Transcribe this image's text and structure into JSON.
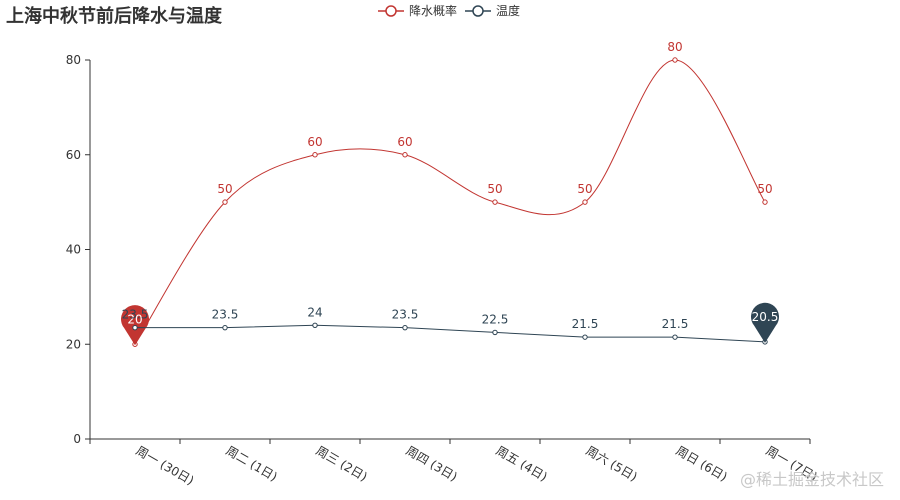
{
  "title": "上海中秋节前后降水与温度",
  "legend": [
    {
      "name": "降水概率",
      "color": "#c23531"
    },
    {
      "name": "温度",
      "color": "#2f4554"
    }
  ],
  "watermark": "@稀土掘金技术社区",
  "chart_data": {
    "type": "line",
    "title": "上海中秋节前后降水与温度",
    "categories": [
      "周一 (30日)",
      "周二 (1日)",
      "周三 (2日)",
      "周四 (3日)",
      "周五 (4日)",
      "周六 (5日)",
      "周日 (6日)",
      "周一 (7日)"
    ],
    "series": [
      {
        "name": "降水概率",
        "values": [
          20,
          50,
          60,
          60,
          50,
          50,
          80,
          50
        ],
        "color": "#c23531",
        "smooth": true,
        "mark_point": {
          "type": "min",
          "label": "20"
        }
      },
      {
        "name": "温度",
        "values": [
          23.5,
          23.5,
          24,
          23.5,
          22.5,
          21.5,
          21.5,
          20.5
        ],
        "color": "#2f4554",
        "smooth": false,
        "mark_point": {
          "type": "min",
          "label": "20.5"
        }
      }
    ],
    "ylim": [
      0,
      80
    ],
    "yticks": [
      0,
      20,
      40,
      60,
      80
    ],
    "grid": false,
    "legend_position": "top-center"
  }
}
